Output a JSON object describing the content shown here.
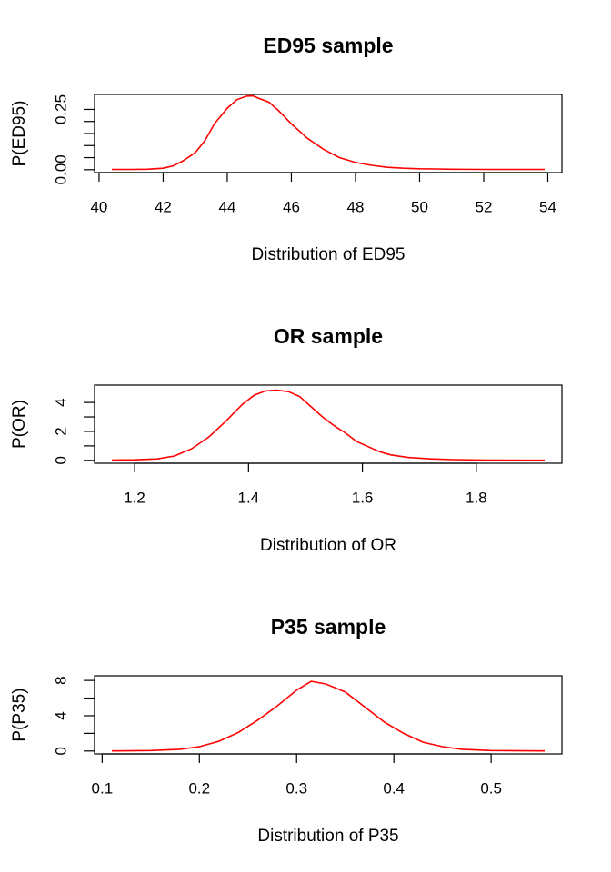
{
  "colors": {
    "line": "#ff0000",
    "axes": "#000000",
    "background": "#ffffff"
  },
  "chart_data": [
    {
      "type": "line",
      "title": "ED95 sample",
      "xlabel": "Distribution of ED95",
      "ylabel": "P(ED95)",
      "xlim": [
        40.4,
        53.9
      ],
      "ylim": [
        0,
        0.3
      ],
      "x_ticks": [
        40,
        42,
        44,
        46,
        48,
        50,
        52,
        54
      ],
      "x_tick_labels": [
        "40",
        "42",
        "44",
        "46",
        "48",
        "50",
        "52",
        "54"
      ],
      "y_ticks": [
        0.0,
        0.05,
        0.1,
        0.15,
        0.2,
        0.25
      ],
      "y_tick_labels": [
        "0.00",
        "",
        "",
        "",
        "",
        "0.25"
      ],
      "grid": false,
      "series": [
        {
          "x": [
            40.4,
            41.0,
            41.5,
            42.0,
            42.3,
            42.6,
            43.0,
            43.3,
            43.6,
            44.0,
            44.3,
            44.6,
            44.8,
            45.0,
            45.3,
            45.6,
            46.0,
            46.5,
            47.0,
            47.5,
            48.0,
            48.5,
            49.0,
            49.5,
            50.0,
            50.5,
            51.0,
            52.0,
            53.0,
            53.9
          ],
          "y": [
            0.001,
            0.001,
            0.002,
            0.006,
            0.015,
            0.035,
            0.07,
            0.12,
            0.19,
            0.255,
            0.29,
            0.305,
            0.306,
            0.295,
            0.28,
            0.245,
            0.19,
            0.13,
            0.085,
            0.05,
            0.03,
            0.018,
            0.01,
            0.006,
            0.004,
            0.003,
            0.002,
            0.001,
            0.001,
            0.001
          ]
        }
      ]
    },
    {
      "type": "line",
      "title": "OR sample",
      "xlabel": "Distribution of OR",
      "ylabel": "P(OR)",
      "xlim": [
        1.16,
        1.92
      ],
      "ylim": [
        0,
        5.0
      ],
      "x_ticks": [
        1.2,
        1.4,
        1.6,
        1.8
      ],
      "x_tick_labels": [
        "1.2",
        "1.4",
        "1.6",
        "1.8"
      ],
      "y_ticks": [
        0,
        1,
        2,
        3,
        4
      ],
      "y_tick_labels": [
        "0",
        "",
        "2",
        "",
        "4"
      ],
      "grid": false,
      "series": [
        {
          "x": [
            1.16,
            1.2,
            1.24,
            1.27,
            1.3,
            1.33,
            1.36,
            1.39,
            1.41,
            1.43,
            1.45,
            1.47,
            1.49,
            1.51,
            1.53,
            1.55,
            1.57,
            1.59,
            1.61,
            1.63,
            1.65,
            1.68,
            1.72,
            1.76,
            1.82,
            1.92
          ],
          "y": [
            0.02,
            0.04,
            0.1,
            0.3,
            0.8,
            1.6,
            2.7,
            3.9,
            4.5,
            4.8,
            4.85,
            4.75,
            4.4,
            3.7,
            3.0,
            2.4,
            1.9,
            1.3,
            0.95,
            0.6,
            0.38,
            0.2,
            0.1,
            0.05,
            0.02,
            0.01
          ]
        }
      ]
    },
    {
      "type": "line",
      "title": "P35 sample",
      "xlabel": "Distribution of P35",
      "ylabel": "P(P35)",
      "xlim": [
        0.11,
        0.555
      ],
      "ylim": [
        0,
        8.2
      ],
      "x_ticks": [
        0.1,
        0.2,
        0.3,
        0.4,
        0.5
      ],
      "x_tick_labels": [
        "0.1",
        "0.2",
        "0.3",
        "0.4",
        "0.5"
      ],
      "y_ticks": [
        0,
        2,
        4,
        6,
        8
      ],
      "y_tick_labels": [
        "0",
        "",
        "4",
        "",
        "8"
      ],
      "grid": false,
      "series": [
        {
          "x": [
            0.11,
            0.15,
            0.18,
            0.2,
            0.22,
            0.24,
            0.26,
            0.28,
            0.3,
            0.315,
            0.33,
            0.35,
            0.37,
            0.39,
            0.41,
            0.43,
            0.45,
            0.47,
            0.5,
            0.555
          ],
          "y": [
            0.01,
            0.05,
            0.2,
            0.5,
            1.1,
            2.1,
            3.5,
            5.1,
            6.9,
            7.9,
            7.6,
            6.7,
            5.0,
            3.3,
            2.0,
            1.0,
            0.5,
            0.2,
            0.05,
            0.01
          ]
        }
      ]
    }
  ]
}
